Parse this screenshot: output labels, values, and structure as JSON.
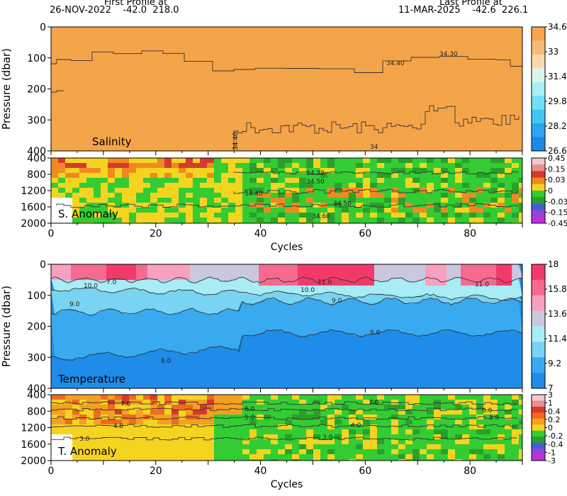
{
  "header": {
    "first_title": "First Profile at",
    "first_info": "26-NOV-2022    -42.0  218.0",
    "last_title": "Last Profile at",
    "last_info": "11-MAR-2025    -42.6  226.1"
  },
  "chart_data": [
    {
      "type": "heatmap",
      "title": "Salinity",
      "ylabel": "Pressure (dbar)",
      "ylim": [
        400,
        0
      ],
      "xlim": [
        0,
        90
      ],
      "yticks": [
        "0",
        "100",
        "200",
        "300",
        "400"
      ],
      "colorbar": {
        "labels": [
          "34.6",
          "33",
          "31.4",
          "29.8",
          "28.2",
          "26.6"
        ],
        "colors": [
          "#f5a54a",
          "#f7bb78",
          "#fbd9aa",
          "#d8f5ee",
          "#a8f0f5",
          "#6fe0f5",
          "#3fc7f2",
          "#2aa5ee",
          "#1e88e8"
        ]
      },
      "contour_labels": [
        "34.30",
        "34.40",
        "34.30",
        "34.40",
        "34.40"
      ],
      "base_color": "#f5a54a"
    },
    {
      "type": "heatmap",
      "title": "S. Anomaly",
      "ylim": [
        2000,
        400
      ],
      "xlim": [
        0,
        90
      ],
      "yticks": [
        "400",
        "800",
        "1200",
        "1600",
        "2000"
      ],
      "xticks": [
        "0",
        "20",
        "40",
        "60",
        "80"
      ],
      "xlabel": "Cycles",
      "colorbar": {
        "labels": [
          "0.45",
          "0.15",
          "0.03",
          "0",
          "-0.03",
          "-0.15",
          "-0.45"
        ],
        "colors": [
          "#f0c8d0",
          "#e89090",
          "#d63a2a",
          "#f08a20",
          "#f5d420",
          "#33cc33",
          "#2aa02a",
          "#4060d0",
          "#9a40d8",
          "#c030e0"
        ]
      },
      "contour_labels": [
        "34.38",
        "34.50",
        "34.40",
        "34.50",
        "34.60"
      ]
    },
    {
      "type": "heatmap",
      "title": "Temperature",
      "ylabel": "Pressure (dbar)",
      "ylim": [
        400,
        0
      ],
      "xlim": [
        0,
        90
      ],
      "yticks": [
        "0",
        "100",
        "200",
        "300",
        "400"
      ],
      "colorbar": {
        "labels": [
          "18",
          "15.8",
          "13.6",
          "11.4",
          "9.2",
          "7"
        ],
        "colors": [
          "#f23a6a",
          "#f56a8e",
          "#f7a0c0",
          "#c9c8de",
          "#a8ecf5",
          "#78d4f2",
          "#3aaaf0",
          "#1e8ce8"
        ]
      },
      "contour_labels": [
        "7.0",
        "10.0",
        "9.0",
        "11.0",
        "9.0",
        "8.0",
        "8.0",
        "10.0",
        "11.0"
      ]
    },
    {
      "type": "heatmap",
      "title": "T. Anomaly",
      "ylim": [
        2000,
        400
      ],
      "xlim": [
        0,
        90
      ],
      "yticks": [
        "400",
        "800",
        "1200",
        "1600",
        "2000"
      ],
      "xticks": [
        "0",
        "20",
        "40",
        "60",
        "80"
      ],
      "xlabel": "Cycles",
      "colorbar": {
        "labels": [
          "3",
          "1",
          "0.4",
          "0.2",
          "0",
          "-0.2",
          "-0.4",
          "-1",
          "-3"
        ],
        "colors": [
          "#f0c8d0",
          "#e89090",
          "#d63a2a",
          "#f06a20",
          "#f5a020",
          "#f5d420",
          "#33cc33",
          "#2aa02a",
          "#4060d0",
          "#9a40d8",
          "#c030e0"
        ]
      },
      "contour_labels": [
        "7.0",
        "6.0",
        "5.0",
        "4.0",
        "3.0",
        "7.0",
        "6.0",
        "5.0",
        "4.0",
        "3.0"
      ]
    }
  ]
}
